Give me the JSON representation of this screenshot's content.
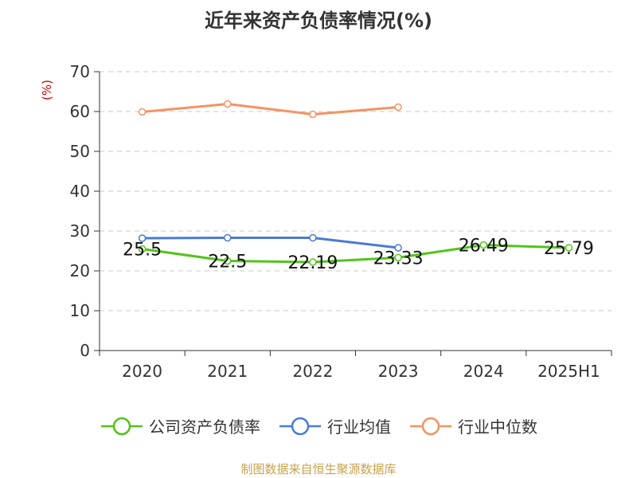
{
  "title": "近年来资产负债率情况(%)",
  "unit_label": "(%)",
  "source": "制图数据来自恒生聚源数据库",
  "chart_data": {
    "type": "line",
    "title": "近年来资产负债率情况(%)",
    "ylabel": "(%)",
    "xlabel": "",
    "categories": [
      "2020",
      "2021",
      "2022",
      "2023",
      "2024",
      "2025H1"
    ],
    "ylim": [
      0,
      70
    ],
    "yticks": [
      0,
      10,
      20,
      30,
      40,
      50,
      60,
      70
    ],
    "grid": true,
    "legend_position": "bottom",
    "series": [
      {
        "name": "公司资产负债率",
        "color": "#52c41a",
        "values": [
          25.5,
          22.5,
          22.19,
          23.33,
          26.49,
          25.79
        ],
        "labels": [
          "25.5",
          "22.5",
          "22.19",
          "23.33",
          "26.49",
          "25.79"
        ]
      },
      {
        "name": "行业均值",
        "color": "#4a7bd6",
        "values": [
          28.2,
          28.3,
          28.3,
          25.8,
          null,
          null
        ]
      },
      {
        "name": "行业中位数",
        "color": "#f59361",
        "values": [
          59.9,
          61.9,
          59.3,
          61.1,
          null,
          null
        ]
      }
    ]
  }
}
